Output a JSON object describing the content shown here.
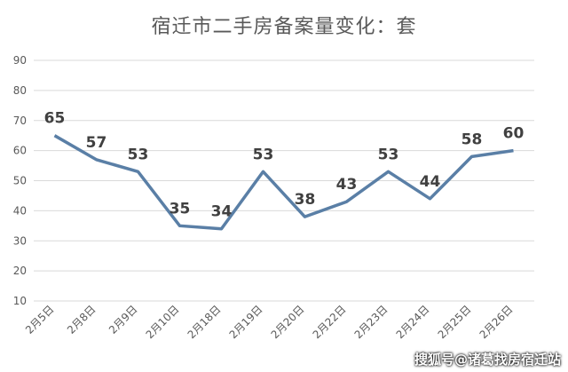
{
  "chart_data": {
    "type": "line",
    "title": "宿迁市二手房备案量变化：套",
    "categories": [
      "2月5日",
      "2月8日",
      "2月9日",
      "2月10日",
      "2月18日",
      "2月19日",
      "2月20日",
      "2月22日",
      "2月23日",
      "2月24日",
      "2月25日",
      "2月26日"
    ],
    "series": [
      {
        "values": [
          65,
          57,
          53,
          35,
          34,
          53,
          38,
          43,
          53,
          44,
          58,
          60
        ]
      }
    ],
    "xlabel": "",
    "ylabel": "",
    "ylim": [
      10,
      90
    ],
    "yticks": [
      10,
      20,
      30,
      40,
      50,
      60,
      70,
      80,
      90
    ],
    "grid": true,
    "line_color": "#5a7fa6",
    "grid_color": "#d9d9d9"
  },
  "watermark": "搜狐号@诸葛找房宿迁站"
}
